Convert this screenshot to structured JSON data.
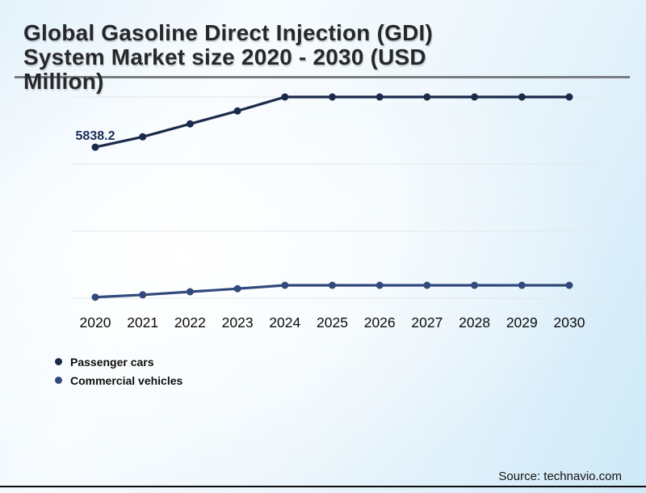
{
  "header": {
    "title_lines": [
      "Global Gasoline Direct Injection (GDI)",
      "System Market size 2020 - 2030 (USD",
      "Million)"
    ],
    "title_full": "Global Gasoline Direct Injection (GDI) System Market size 2020 - 2030 (USD Million)"
  },
  "chart_data": {
    "type": "line",
    "title": "Global Gasoline Direct Injection (GDI) System Market size 2020 - 2030 (USD Million)",
    "categories": [
      "2020",
      "2021",
      "2022",
      "2023",
      "2024",
      "2025",
      "2026",
      "2027",
      "2028",
      "2029",
      "2030"
    ],
    "series": [
      {
        "name": "Passenger cars",
        "color": "#1a2a4a",
        "values": [
          5838.2,
          6240,
          6740,
          7240,
          7780,
          7780,
          7780,
          7780,
          7780,
          7780,
          7780
        ]
      },
      {
        "name": "Commercial vehicles",
        "color": "#32497c",
        "values": [
          40,
          130,
          250,
          370,
          500,
          500,
          500,
          500,
          500,
          500,
          500
        ]
      }
    ],
    "data_labels": [
      {
        "series": "Passenger cars",
        "category": "2020",
        "text": "5838.2"
      }
    ],
    "ylim": [
      0,
      7780
    ],
    "grid": "horizontal",
    "gridline_count": 4,
    "legend_position": "bottom-left",
    "xlabel": "",
    "ylabel": ""
  },
  "legend": {
    "items": [
      {
        "label": "Passenger cars",
        "color": "#1a2a4a"
      },
      {
        "label": "Commercial vehicles",
        "color": "#32497c"
      }
    ]
  },
  "footer": {
    "source": "Source: technavio.com"
  }
}
